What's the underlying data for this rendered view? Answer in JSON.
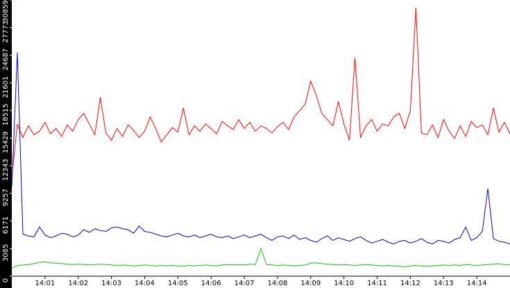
{
  "chart_data": {
    "type": "line",
    "xlim": [
      0,
      90
    ],
    "xticks": [
      {
        "value": 6,
        "label": "14:01"
      },
      {
        "value": 12,
        "label": "14:02"
      },
      {
        "value": 18,
        "label": "14:03"
      },
      {
        "value": 24,
        "label": "14:04"
      },
      {
        "value": 30,
        "label": "14:05"
      },
      {
        "value": 36,
        "label": "14:06"
      },
      {
        "value": 42,
        "label": "14:07"
      },
      {
        "value": 48,
        "label": "14:08"
      },
      {
        "value": 54,
        "label": "14:09"
      },
      {
        "value": 60,
        "label": "14:10"
      },
      {
        "value": 66,
        "label": "14:11"
      },
      {
        "value": 72,
        "label": "14:12"
      },
      {
        "value": 78,
        "label": "14:13"
      },
      {
        "value": 84,
        "label": "14:14"
      }
    ],
    "ylim": [
      0,
      30859
    ],
    "yticks": [
      0,
      3085,
      6171,
      9257,
      12343,
      15429,
      18515,
      21601,
      24687,
      27773,
      30859
    ],
    "series": [
      {
        "color": "#ff0000",
        "values": [
          11000,
          17000,
          15500,
          16800,
          15800,
          16200,
          17200,
          15900,
          16500,
          15600,
          16900,
          16200,
          17500,
          18200,
          17000,
          15800,
          20000,
          16000,
          15200,
          16500,
          15600,
          16900,
          16300,
          15500,
          16200,
          17800,
          16500,
          15000,
          15800,
          16600,
          16100,
          18800,
          15800,
          16800,
          16200,
          17000,
          16500,
          15900,
          17300,
          16800,
          16400,
          17500,
          16500,
          17200,
          16200,
          16800,
          16500,
          16000,
          16700,
          17200,
          16400,
          17800,
          18500,
          19200,
          21800,
          20200,
          18200,
          17500,
          16800,
          19500,
          17000,
          15200,
          24400,
          15500,
          16800,
          17500,
          16200,
          17000,
          16800,
          17800,
          18200,
          16500,
          18500,
          30000,
          16000,
          15800,
          16900,
          15500,
          17500,
          16200,
          15400,
          16800,
          15600,
          17300,
          16600,
          16900,
          15800,
          18800,
          16100,
          17200,
          15900
        ]
      },
      {
        "color": "#0000cc",
        "values": [
          10000,
          25000,
          4700,
          4500,
          4400,
          5500,
          4600,
          4300,
          4500,
          4800,
          4700,
          4400,
          4600,
          5200,
          4900,
          5300,
          5100,
          5000,
          5400,
          5500,
          5300,
          5200,
          4800,
          5600,
          5000,
          4900,
          4700,
          4500,
          4400,
          4600,
          4800,
          4500,
          4400,
          4600,
          4300,
          4500,
          4700,
          4400,
          4300,
          4500,
          4200,
          4400,
          4600,
          4300,
          4500,
          4700,
          4300,
          4000,
          4400,
          4500,
          4200,
          4600,
          4100,
          4300,
          4000,
          3800,
          4200,
          4500,
          4000,
          4300,
          4100,
          3900,
          4200,
          4400,
          4000,
          3700,
          3900,
          4100,
          3800,
          3600,
          3900,
          4000,
          3700,
          3900,
          4200,
          3800,
          3600,
          4000,
          3900,
          3700,
          4100,
          4300,
          5500,
          4000,
          4300,
          5000,
          9800,
          4200,
          3900,
          3800,
          3600
        ]
      },
      {
        "color": "#00cc00",
        "values": [
          900,
          1200,
          1250,
          1300,
          1400,
          1550,
          1600,
          1500,
          1450,
          1400,
          1350,
          1300,
          1350,
          1300,
          1250,
          1300,
          1350,
          1300,
          1250,
          1200,
          1250,
          1200,
          1150,
          1200,
          1250,
          1200,
          1150,
          1200,
          1150,
          1200,
          1150,
          1100,
          1200,
          1150,
          1200,
          1250,
          1200,
          1150,
          1250,
          1300,
          1250,
          1300,
          1250,
          1350,
          1300,
          3100,
          1300,
          1250,
          1200,
          1250,
          1200,
          1150,
          1200,
          1250,
          1450,
          1500,
          1400,
          1350,
          1300,
          1250,
          1300,
          1250,
          1200,
          1250,
          1300,
          1250,
          1200,
          1150,
          1200,
          1150,
          1100,
          1050,
          1150,
          1200,
          1150,
          1100,
          1150,
          1200,
          1250,
          1200,
          1250,
          1200,
          1300,
          1250,
          1200,
          1250,
          1300,
          1350,
          1400,
          1300,
          1250
        ]
      }
    ]
  }
}
